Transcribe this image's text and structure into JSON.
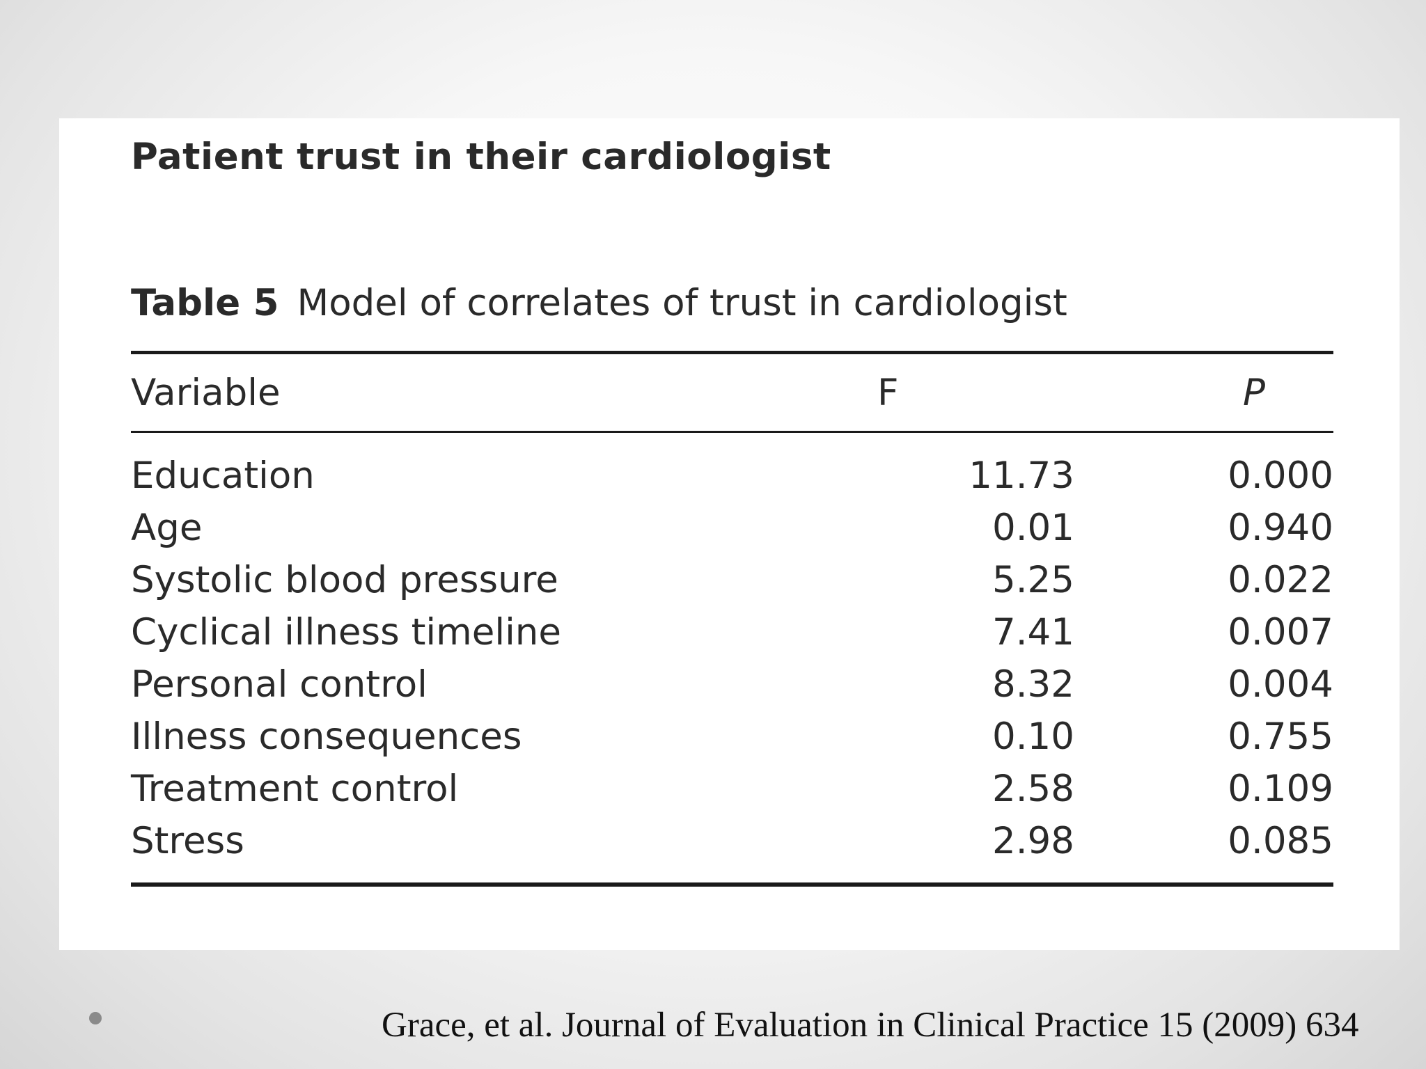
{
  "heading": "Patient trust in their cardiologist",
  "table": {
    "label": "Table 5",
    "caption": "Model of correlates of trust in cardiologist",
    "columns": [
      "Variable",
      "F",
      "P"
    ],
    "rows": [
      {
        "variable": "Education",
        "f": "11.73",
        "p": "0.000"
      },
      {
        "variable": "Age",
        "f": "0.01",
        "p": "0.940"
      },
      {
        "variable": "Systolic blood pressure",
        "f": "5.25",
        "p": "0.022"
      },
      {
        "variable": "Cyclical illness timeline",
        "f": "7.41",
        "p": "0.007"
      },
      {
        "variable": "Personal control",
        "f": "8.32",
        "p": "0.004"
      },
      {
        "variable": "Illness consequences",
        "f": "0.10",
        "p": "0.755"
      },
      {
        "variable": "Treatment control",
        "f": "2.58",
        "p": "0.109"
      },
      {
        "variable": "Stress",
        "f": "2.98",
        "p": "0.085"
      }
    ]
  },
  "citation": "Grace, et al. Journal of Evaluation in Clinical Practice 15 (2009) 634"
}
